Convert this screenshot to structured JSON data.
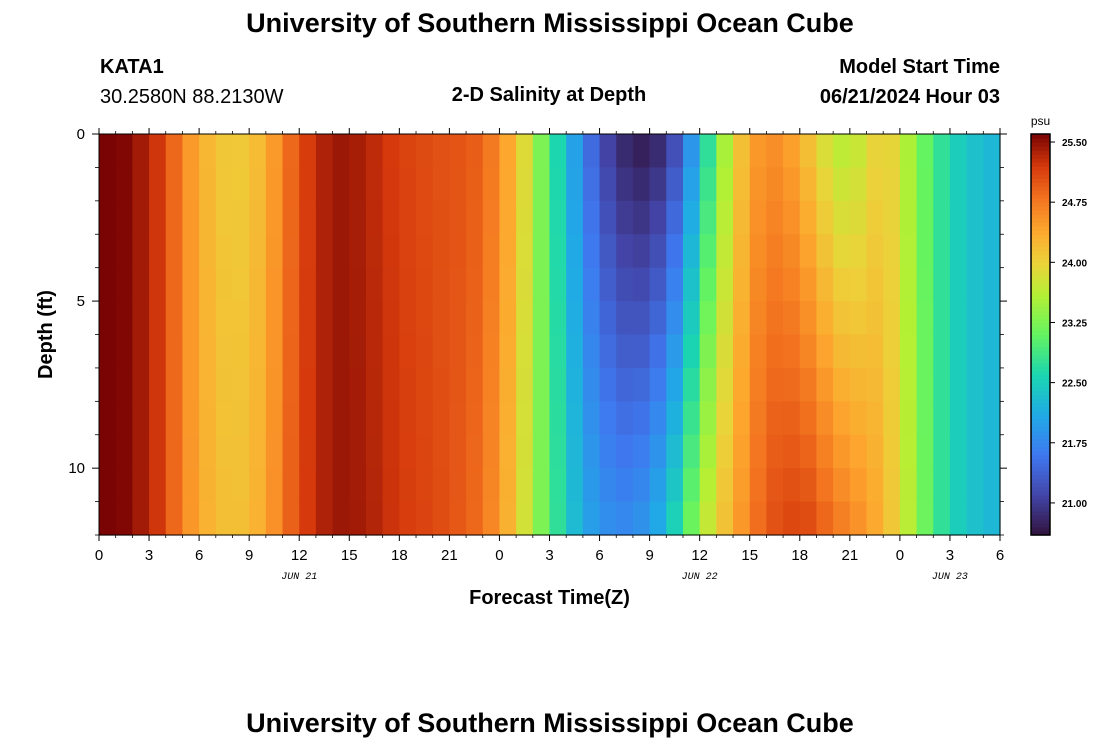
{
  "page": {
    "title_top": "University of Southern Mississippi Ocean Cube",
    "title_bottom": "University of Southern Mississippi Ocean Cube",
    "station_name": "KATA1",
    "station_coords": "30.2580N  88.2130W",
    "subtitle": "2-D Salinity at Depth",
    "model_start_label": "Model Start Time",
    "model_start_value": "06/21/2024 Hour 03"
  },
  "chart_data": {
    "type": "heatmap",
    "title": "2-D Salinity at Depth",
    "xlabel": "Forecast Time(Z)",
    "ylabel": "Depth (ft)",
    "x_unit": "hours since 06/21 00Z",
    "xlim": [
      0,
      54
    ],
    "ylim": [
      0,
      12
    ],
    "y_inverted": true,
    "x_ticks": [
      0,
      3,
      6,
      9,
      12,
      15,
      18,
      21,
      24,
      27,
      30,
      33,
      36,
      39,
      42,
      45,
      48,
      51,
      54
    ],
    "x_tick_labels": [
      "0",
      "3",
      "6",
      "9",
      "12",
      "15",
      "18",
      "21",
      "0",
      "3",
      "6",
      "9",
      "12",
      "15",
      "18",
      "21",
      "0",
      "3",
      "6"
    ],
    "y_ticks": [
      0,
      5,
      10
    ],
    "y_tick_labels": [
      "0",
      "5",
      "10"
    ],
    "date_labels": [
      {
        "text": "JUN 21",
        "x": 12
      },
      {
        "text": "JUN 22",
        "x": 36
      },
      {
        "text": "JUN 23",
        "x": 51
      }
    ],
    "colorbar": {
      "unit": "psu",
      "vmin": 20.6,
      "vmax": 25.6,
      "tick_values": [
        21.0,
        21.75,
        22.5,
        23.25,
        24.0,
        24.75,
        25.5
      ],
      "tick_labels": [
        "21.00",
        "21.75",
        "22.50",
        "23.25",
        "24.00",
        "24.75",
        "25.50"
      ]
    },
    "surface_salinity_psu": [
      {
        "t": 0,
        "v": 25.75
      },
      {
        "t": 1,
        "v": 25.65
      },
      {
        "t": 2,
        "v": 25.5
      },
      {
        "t": 3,
        "v": 25.35
      },
      {
        "t": 4,
        "v": 25.1
      },
      {
        "t": 5,
        "v": 24.65
      },
      {
        "t": 6,
        "v": 24.35
      },
      {
        "t": 7,
        "v": 24.15
      },
      {
        "t": 8,
        "v": 24.05
      },
      {
        "t": 9,
        "v": 24.1
      },
      {
        "t": 10,
        "v": 24.3
      },
      {
        "t": 11,
        "v": 24.7
      },
      {
        "t": 12,
        "v": 25.05
      },
      {
        "t": 13,
        "v": 25.3
      },
      {
        "t": 14,
        "v": 25.45
      },
      {
        "t": 15,
        "v": 25.45
      },
      {
        "t": 16,
        "v": 25.35
      },
      {
        "t": 17,
        "v": 25.25
      },
      {
        "t": 18,
        "v": 25.15
      },
      {
        "t": 20,
        "v": 25.05
      },
      {
        "t": 22,
        "v": 25.0
      },
      {
        "t": 23,
        "v": 24.9
      },
      {
        "t": 24,
        "v": 24.6
      },
      {
        "t": 25,
        "v": 24.2
      },
      {
        "t": 26,
        "v": 23.6
      },
      {
        "t": 27,
        "v": 22.9
      },
      {
        "t": 28,
        "v": 22.3
      },
      {
        "t": 29,
        "v": 21.7
      },
      {
        "t": 30,
        "v": 21.2
      },
      {
        "t": 31,
        "v": 20.9
      },
      {
        "t": 32,
        "v": 20.7
      },
      {
        "t": 33,
        "v": 20.7
      },
      {
        "t": 34,
        "v": 20.9
      },
      {
        "t": 35,
        "v": 21.4
      },
      {
        "t": 36,
        "v": 22.3
      },
      {
        "t": 37,
        "v": 23.1
      },
      {
        "t": 38,
        "v": 23.9
      },
      {
        "t": 39,
        "v": 24.4
      },
      {
        "t": 40,
        "v": 24.6
      },
      {
        "t": 41,
        "v": 24.55
      },
      {
        "t": 42,
        "v": 24.3
      },
      {
        "t": 43,
        "v": 24.0
      },
      {
        "t": 44,
        "v": 23.65
      },
      {
        "t": 45,
        "v": 23.6
      },
      {
        "t": 46,
        "v": 23.8
      },
      {
        "t": 47,
        "v": 24.1
      },
      {
        "t": 48,
        "v": 23.8
      },
      {
        "t": 49,
        "v": 23.3
      },
      {
        "t": 50,
        "v": 22.9
      },
      {
        "t": 51,
        "v": 22.6
      },
      {
        "t": 52,
        "v": 22.4
      },
      {
        "t": 54,
        "v": 22.2
      }
    ],
    "bottom_salinity_psu": [
      {
        "t": 0,
        "v": 25.75
      },
      {
        "t": 1,
        "v": 25.65
      },
      {
        "t": 2,
        "v": 25.5
      },
      {
        "t": 3,
        "v": 25.35
      },
      {
        "t": 4,
        "v": 25.1
      },
      {
        "t": 5,
        "v": 24.65
      },
      {
        "t": 6,
        "v": 24.4
      },
      {
        "t": 7,
        "v": 24.2
      },
      {
        "t": 8,
        "v": 24.15
      },
      {
        "t": 9,
        "v": 24.2
      },
      {
        "t": 10,
        "v": 24.4
      },
      {
        "t": 11,
        "v": 24.75
      },
      {
        "t": 12,
        "v": 25.1
      },
      {
        "t": 13,
        "v": 25.3
      },
      {
        "t": 14,
        "v": 25.45
      },
      {
        "t": 15,
        "v": 25.45
      },
      {
        "t": 16,
        "v": 25.4
      },
      {
        "t": 17,
        "v": 25.3
      },
      {
        "t": 18,
        "v": 25.2
      },
      {
        "t": 20,
        "v": 25.1
      },
      {
        "t": 22,
        "v": 24.95
      },
      {
        "t": 23,
        "v": 24.8
      },
      {
        "t": 24,
        "v": 24.5
      },
      {
        "t": 25,
        "v": 24.1
      },
      {
        "t": 26,
        "v": 23.5
      },
      {
        "t": 27,
        "v": 23.0
      },
      {
        "t": 28,
        "v": 22.5
      },
      {
        "t": 29,
        "v": 22.1
      },
      {
        "t": 30,
        "v": 21.9
      },
      {
        "t": 31,
        "v": 21.8
      },
      {
        "t": 32,
        "v": 21.8
      },
      {
        "t": 33,
        "v": 22.0
      },
      {
        "t": 34,
        "v": 22.3
      },
      {
        "t": 35,
        "v": 22.9
      },
      {
        "t": 36,
        "v": 23.5
      },
      {
        "t": 37,
        "v": 24.0
      },
      {
        "t": 38,
        "v": 24.35
      },
      {
        "t": 39,
        "v": 24.7
      },
      {
        "t": 40,
        "v": 25.0
      },
      {
        "t": 41,
        "v": 25.1
      },
      {
        "t": 42,
        "v": 25.15
      },
      {
        "t": 43,
        "v": 25.05
      },
      {
        "t": 44,
        "v": 24.8
      },
      {
        "t": 45,
        "v": 24.7
      },
      {
        "t": 46,
        "v": 24.5
      },
      {
        "t": 47,
        "v": 24.3
      },
      {
        "t": 48,
        "v": 23.9
      },
      {
        "t": 49,
        "v": 23.4
      },
      {
        "t": 50,
        "v": 22.9
      },
      {
        "t": 51,
        "v": 22.6
      },
      {
        "t": 52,
        "v": 22.4
      },
      {
        "t": 54,
        "v": 22.2
      }
    ]
  }
}
